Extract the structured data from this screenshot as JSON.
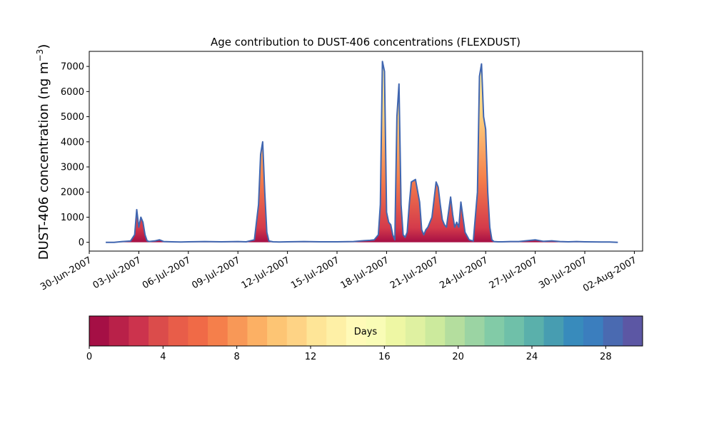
{
  "chart_data": {
    "type": "area",
    "title": "Age contribution to DUST-406 concentrations (FLEXDUST)",
    "ylabel": "DUST-406 concentration (ng m",
    "ylabel_sup": "−3",
    "ylabel_close": ")",
    "ylim": [
      -350,
      7600
    ],
    "yticks": [
      0,
      1000,
      2000,
      3000,
      4000,
      5000,
      6000,
      7000
    ],
    "xlim": [
      "2007-06-30T00:00",
      "2007-08-02T12:00"
    ],
    "xtick_labels": [
      "30-Jun-2007",
      "03-Jul-2007",
      "06-Jul-2007",
      "09-Jul-2007",
      "12-Jul-2007",
      "15-Jul-2007",
      "18-Jul-2007",
      "21-Jul-2007",
      "24-Jul-2007",
      "27-Jul-2007",
      "30-Jul-2007",
      "02-Aug-2007"
    ],
    "series_note": "stacked by age (days 0-30)",
    "total": {
      "x": [
        "2007-07-01T00:00",
        "2007-07-01T12:00",
        "2007-07-02T00:00",
        "2007-07-02T12:00",
        "2007-07-02T18:00",
        "2007-07-02T21:00",
        "2007-07-03T00:00",
        "2007-07-03T03:00",
        "2007-07-03T06:00",
        "2007-07-03T09:00",
        "2007-07-03T12:00",
        "2007-07-03T15:00",
        "2007-07-03T18:00",
        "2007-07-04T00:00",
        "2007-07-04T06:00",
        "2007-07-04T12:00",
        "2007-07-05T00:00",
        "2007-07-05T12:00",
        "2007-07-06T00:00",
        "2007-07-07T00:00",
        "2007-07-08T00:00",
        "2007-07-09T00:00",
        "2007-07-09T12:00",
        "2007-07-10T00:00",
        "2007-07-10T06:00",
        "2007-07-10T09:00",
        "2007-07-10T12:00",
        "2007-07-10T15:00",
        "2007-07-10T18:00",
        "2007-07-10T21:00",
        "2007-07-11T03:00",
        "2007-07-11T12:00",
        "2007-07-12T00:00",
        "2007-07-13T00:00",
        "2007-07-14T00:00",
        "2007-07-15T00:00",
        "2007-07-16T00:00",
        "2007-07-16T12:00",
        "2007-07-17T00:00",
        "2007-07-17T06:00",
        "2007-07-17T12:00",
        "2007-07-17T15:00",
        "2007-07-17T18:00",
        "2007-07-17T21:00",
        "2007-07-18T00:00",
        "2007-07-18T03:00",
        "2007-07-18T06:00",
        "2007-07-18T09:00",
        "2007-07-18T12:00",
        "2007-07-18T15:00",
        "2007-07-18T18:00",
        "2007-07-18T21:00",
        "2007-07-19T00:00",
        "2007-07-19T03:00",
        "2007-07-19T06:00",
        "2007-07-19T09:00",
        "2007-07-19T12:00",
        "2007-07-19T18:00",
        "2007-07-20T00:00",
        "2007-07-20T03:00",
        "2007-07-20T06:00",
        "2007-07-20T09:00",
        "2007-07-20T12:00",
        "2007-07-20T18:00",
        "2007-07-21T00:00",
        "2007-07-21T03:00",
        "2007-07-21T06:00",
        "2007-07-21T09:00",
        "2007-07-21T12:00",
        "2007-07-21T15:00",
        "2007-07-21T18:00",
        "2007-07-21T21:00",
        "2007-07-22T00:00",
        "2007-07-22T03:00",
        "2007-07-22T06:00",
        "2007-07-22T09:00",
        "2007-07-22T12:00",
        "2007-07-22T15:00",
        "2007-07-22T18:00",
        "2007-07-23T00:00",
        "2007-07-23T06:00",
        "2007-07-23T12:00",
        "2007-07-23T15:00",
        "2007-07-23T18:00",
        "2007-07-23T21:00",
        "2007-07-24T00:00",
        "2007-07-24T03:00",
        "2007-07-24T06:00",
        "2007-07-24T09:00",
        "2007-07-24T12:00",
        "2007-07-24T18:00",
        "2007-07-25T00:00",
        "2007-07-25T12:00",
        "2007-07-26T00:00",
        "2007-07-27T00:00",
        "2007-07-27T12:00",
        "2007-07-28T00:00",
        "2007-07-28T12:00",
        "2007-07-29T00:00",
        "2007-07-29T12:00",
        "2007-07-30T00:00",
        "2007-07-31T00:00",
        "2007-07-31T12:00",
        "2007-08-01T00:00"
      ],
      "y": [
        0,
        0,
        30,
        50,
        300,
        1300,
        600,
        1000,
        800,
        300,
        60,
        30,
        40,
        60,
        100,
        30,
        20,
        10,
        20,
        30,
        20,
        30,
        20,
        100,
        1500,
        3500,
        4000,
        2000,
        400,
        50,
        20,
        10,
        20,
        30,
        20,
        20,
        30,
        60,
        80,
        100,
        300,
        1500,
        7200,
        6800,
        1200,
        800,
        700,
        300,
        100,
        5000,
        6300,
        1500,
        300,
        200,
        400,
        1500,
        2400,
        2500,
        1600,
        500,
        300,
        500,
        600,
        1000,
        2400,
        2200,
        1500,
        900,
        700,
        600,
        1200,
        1800,
        1100,
        600,
        800,
        600,
        1600,
        1000,
        400,
        100,
        50,
        2000,
        6600,
        7100,
        5000,
        4500,
        2000,
        600,
        100,
        30,
        20,
        20,
        30,
        30,
        100,
        40,
        60,
        30,
        20,
        30,
        20,
        10,
        10,
        0
      ]
    },
    "colorbar": {
      "label": "Days",
      "min": 0,
      "max": 30,
      "ticks": [
        0,
        4,
        8,
        12,
        16,
        20,
        24,
        28
      ],
      "colors": [
        "#a50f45",
        "#b92149",
        "#cc334d",
        "#db4c4b",
        "#e85d49",
        "#f06a47",
        "#f57f4b",
        "#f89857",
        "#fcb064",
        "#fdc574",
        "#fed385",
        "#fee597",
        "#fef0a6",
        "#fffab8",
        "#f9fcb6",
        "#eef7a4",
        "#dff1a1",
        "#ccea9d",
        "#b4de9e",
        "#9bd4a3",
        "#82cba7",
        "#6fc0a9",
        "#5ab0ab",
        "#479db1",
        "#388bbc",
        "#3b7ebe",
        "#4a6ab1",
        "#5c57a4"
      ]
    },
    "colors": {
      "outline": "#4066b0",
      "area_base": "#a50f45",
      "area_mid": "#f57f4b",
      "area_top": "#fef0a6"
    }
  }
}
